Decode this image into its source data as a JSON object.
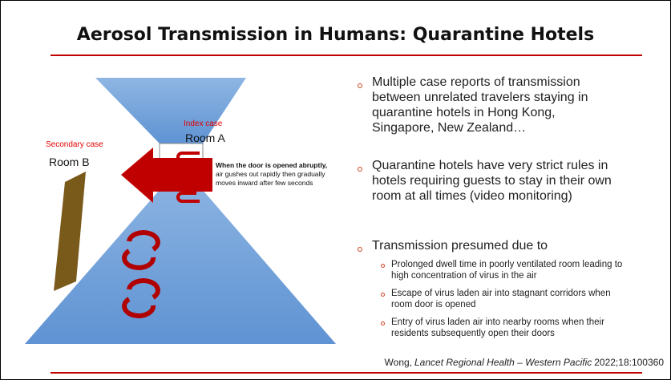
{
  "title": "Aerosol Transmission in Humans: Quarantine Hotels",
  "diagram": {
    "index_case": "Index case",
    "room_a": "Room A",
    "secondary_case": "Secondary case",
    "room_b": "Room B",
    "note_bold": "When the door is opened abruptly,",
    "note": "air gushes out rapidly then gradually moves inward after few seconds"
  },
  "bullets": [
    {
      "text": "Multiple case reports of transmission between unrelated travelers staying in quarantine hotels in Hong Kong, Singapore, New Zealand…"
    },
    {
      "text": "Quarantine hotels have very strict rules in hotels requiring guests to stay in their own room at all times (video monitoring)"
    },
    {
      "text": "Transmission presumed due to",
      "sub": [
        "Prolonged dwell time in poorly ventilated room leading to high concentration of virus in the air",
        "Escape of virus laden air into stagnant corridors when room door is opened",
        "Entry of virus laden air into nearby rooms when their residents subsequently open their doors"
      ]
    }
  ],
  "citation": {
    "author": "Wong,",
    "journal": "Lancet Regional Health – Western Pacific",
    "ref": "2022;18:100360"
  }
}
